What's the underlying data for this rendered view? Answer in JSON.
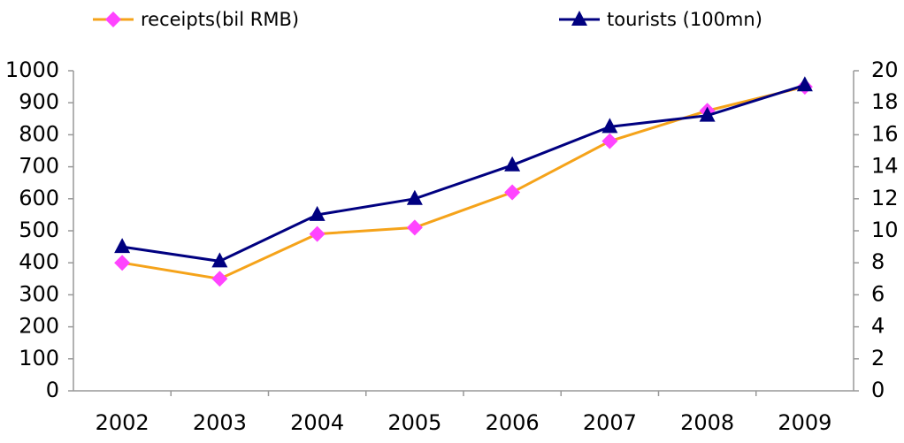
{
  "chart_data": {
    "type": "line",
    "categories": [
      "2002",
      "2003",
      "2004",
      "2005",
      "2006",
      "2007",
      "2008",
      "2009"
    ],
    "series": [
      {
        "name": "receipts(bil RMB)",
        "color": "#f5a31a",
        "marker_color": "#ff44ff",
        "marker": "diamond",
        "values": [
          400,
          350,
          490,
          510,
          620,
          780,
          875,
          950
        ]
      },
      {
        "name": "tourists (100mn)",
        "color": "#000080",
        "marker_color": "#000080",
        "marker": "triangle",
        "axis": "y2",
        "values": [
          9.0,
          8.1,
          11.0,
          12.0,
          14.1,
          16.5,
          17.2,
          19.1
        ]
      }
    ],
    "ylim": [
      0,
      1000
    ],
    "yticks": [
      0,
      100,
      200,
      300,
      400,
      500,
      600,
      700,
      800,
      900,
      1000
    ],
    "y2lim": [
      0,
      20
    ],
    "y2ticks": [
      0,
      2,
      4,
      6,
      8,
      10,
      12,
      14,
      16,
      18,
      20
    ],
    "grid": false,
    "legend": "top"
  }
}
